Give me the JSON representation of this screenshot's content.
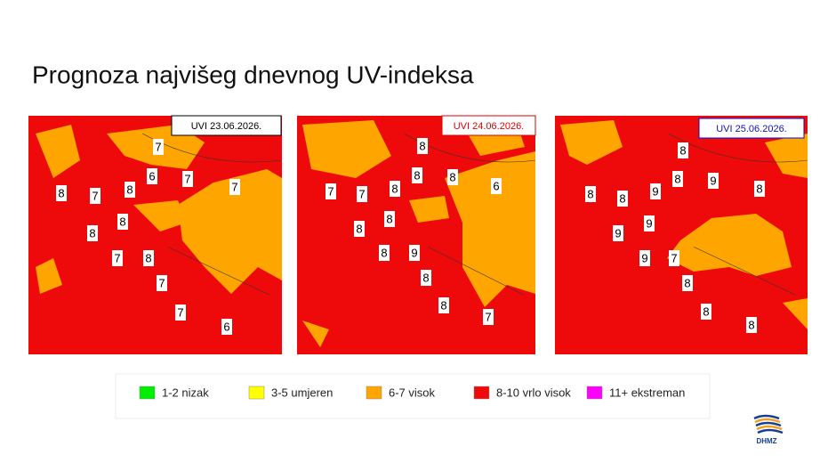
{
  "title": "Prognoza najvišeg dnevnog UV-indeksa",
  "maps": [
    {
      "header": "UVI  23.06.2026.",
      "header_color": "#000000",
      "labels": [
        7,
        6,
        7,
        7,
        8,
        7,
        8,
        8,
        8,
        7,
        8,
        7,
        7,
        6
      ]
    },
    {
      "header": "UVI  24.06.2026.",
      "header_color": "#e00000",
      "labels": [
        8,
        8,
        8,
        6,
        7,
        7,
        8,
        8,
        8,
        8,
        9,
        8,
        8,
        7
      ]
    },
    {
      "header": "UVI  25.06.2026.",
      "header_color": "#1010c0",
      "labels": [
        8,
        8,
        9,
        8,
        8,
        8,
        9,
        9,
        9,
        9,
        7,
        8,
        8,
        8
      ]
    }
  ],
  "legend": [
    {
      "label": "1-2 nizak",
      "color": "#00ee00"
    },
    {
      "label": "3-5 umjeren",
      "color": "#ffff00"
    },
    {
      "label": "6-7 visok",
      "color": "#ffa500"
    },
    {
      "label": "8-10 vrlo visok",
      "color": "#ee0a0a"
    },
    {
      "label": "11+ ekstreman",
      "color": "#ff00ff"
    }
  ],
  "logo": "DHMZ"
}
